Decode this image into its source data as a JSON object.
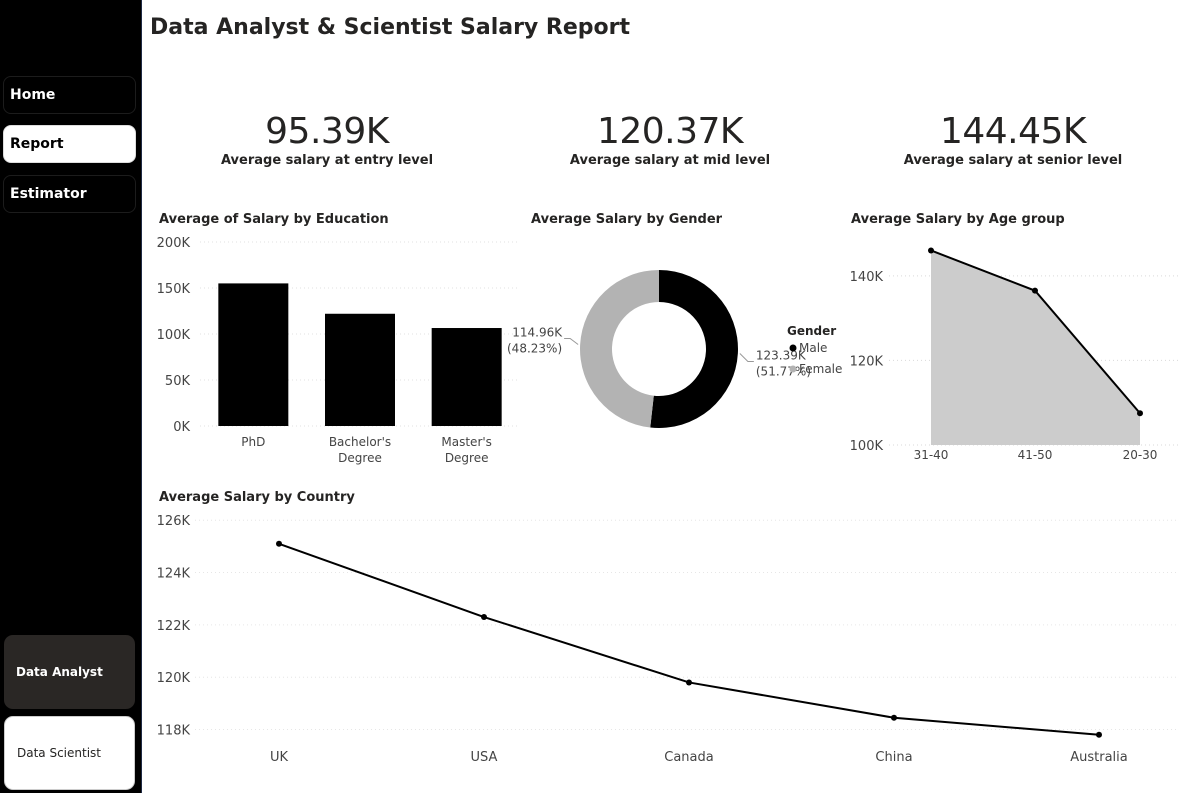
{
  "sidebar": {
    "nav": [
      {
        "label": "Home",
        "active": false
      },
      {
        "label": "Report",
        "active": true
      },
      {
        "label": "Estimator",
        "active": false
      }
    ],
    "roles": [
      {
        "label": "Data Analyst",
        "active": false
      },
      {
        "label": "Data Scientist",
        "active": true
      }
    ]
  },
  "page": {
    "title": "Data Analyst & Scientist Salary Report"
  },
  "kpis": [
    {
      "value": "95.39K",
      "label": "Average salary at entry level"
    },
    {
      "value": "120.37K",
      "label": "Average salary at mid level"
    },
    {
      "value": "144.45K",
      "label": "Average salary at senior level"
    }
  ],
  "chart_data": [
    {
      "type": "bar",
      "title": "Average of Salary by Education",
      "categories": [
        "PhD",
        "Bachelor's Degree",
        "Master's Degree"
      ],
      "category_lines": [
        [
          "PhD"
        ],
        [
          "Bachelor's",
          "Degree"
        ],
        [
          "Master's",
          "Degree"
        ]
      ],
      "values": [
        155000,
        122000,
        106500
      ],
      "yticks": [
        "0K",
        "50K",
        "100K",
        "150K",
        "200K"
      ],
      "ylim": [
        0,
        200000
      ],
      "grid": true,
      "color": "#000000"
    },
    {
      "type": "pie",
      "title": "Average Salary by Gender",
      "donut": true,
      "slices": [
        {
          "name": "Male",
          "value": 123.39,
          "value_label": "123.39K",
          "pct_label": "(51.77%)",
          "color": "#000000"
        },
        {
          "name": "Female",
          "value": 114.96,
          "value_label": "114.96K",
          "pct_label": "(48.23%)",
          "color": "#b3b3b3"
        }
      ],
      "legend_title": "Gender",
      "legend_position": "right"
    },
    {
      "type": "area",
      "title": "Average Salary by Age group",
      "categories": [
        "31-40",
        "41-50",
        "20-30"
      ],
      "values": [
        146000,
        136500,
        107500
      ],
      "yticks": [
        "100K",
        "120K",
        "140K"
      ],
      "ylim": [
        100000,
        148000
      ],
      "grid": true,
      "line_color": "#000000",
      "fill_color": "#cccccc"
    },
    {
      "type": "line",
      "title": "Average Salary by Country",
      "categories": [
        "UK",
        "USA",
        "Canada",
        "China",
        "Australia"
      ],
      "values": [
        125100,
        122300,
        119800,
        118450,
        117800
      ],
      "yticks": [
        "118K",
        "120K",
        "122K",
        "124K",
        "126K"
      ],
      "ylim": [
        117600,
        126200
      ],
      "grid": true,
      "line_color": "#000000"
    }
  ]
}
